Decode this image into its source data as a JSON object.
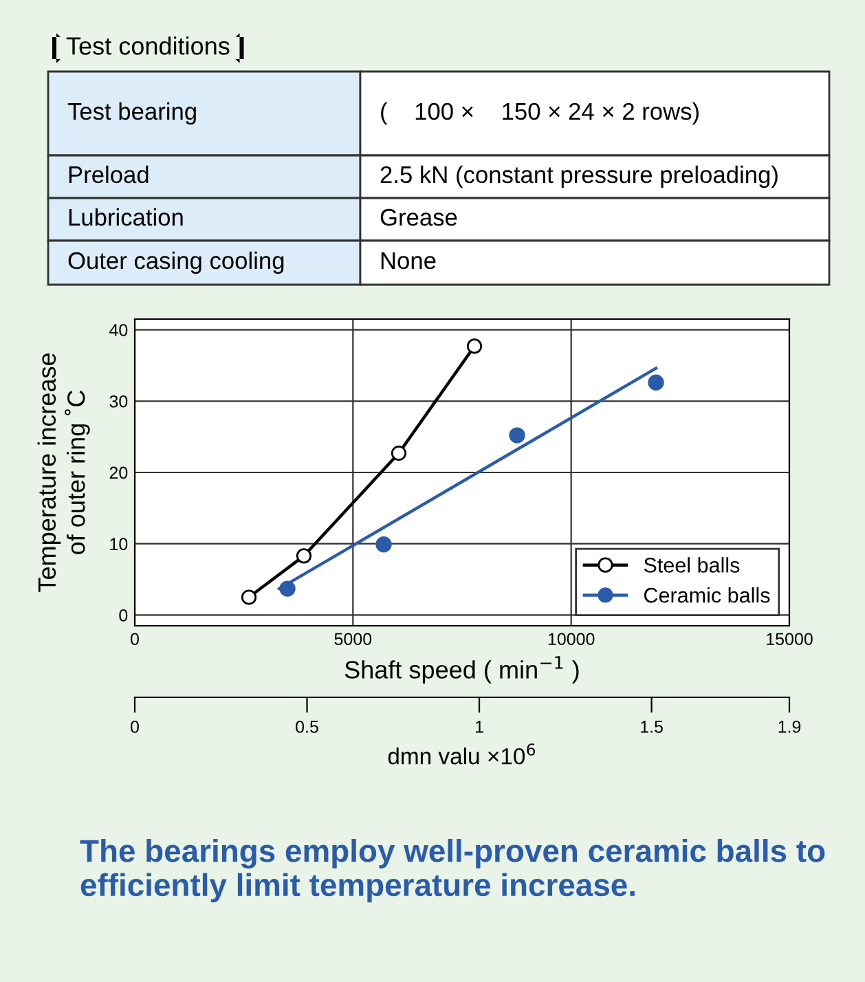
{
  "chart_data": {
    "type": "line",
    "annotations": [
      "Test conditions",
      "Test bearing",
      "(    100 ×    150 × 24 × 2 rows)",
      "Preload",
      "2.5 kN (constant pressure preloading)",
      "Lubrication",
      "Grease",
      "Outer casing cooling",
      "None",
      "The bearings employ well-proven ceramic balls to efficiently limit temperature increase."
    ],
    "xlabel": "Shaft speed ( min$^{−1}$ )",
    "ylabel": "Temperature increase\nof outer ring ˚C",
    "x2label": "dmn valu ×10$^{6}$",
    "xlim": [
      0,
      15000
    ],
    "xticks": [
      0,
      5000,
      10000,
      15000
    ],
    "x2lim": [
      0,
      1.9
    ],
    "x2ticks": [
      0,
      0.5,
      1,
      1.5,
      1.9
    ],
    "ylim": [
      -1.5,
      41.5
    ],
    "yticks": [
      0,
      10,
      20,
      30,
      40
    ],
    "grid": true,
    "legend": "bottom right",
    "series": [
      {
        "name": "Steel balls",
        "color": "#000000",
        "marker": "circle",
        "x": [
          2616,
          3876,
          6050,
          7784
        ],
        "values": [
          2.5,
          8.3,
          22.7,
          37.7
        ]
      },
      {
        "name": "Ceramic balls",
        "type": "scatter",
        "color": "#2a5caa",
        "marker": "circle",
        "x": [
          3498,
          5704,
          8761,
          11943
        ],
        "values": [
          3.7,
          9.9,
          25.2,
          32.6
        ]
      },
      {
        "type": "line",
        "color": "#2a5caa",
        "marker": "none",
        "x": [
          3309,
          11943
        ],
        "values": [
          3.7,
          34.6
        ]
      }
    ]
  }
}
